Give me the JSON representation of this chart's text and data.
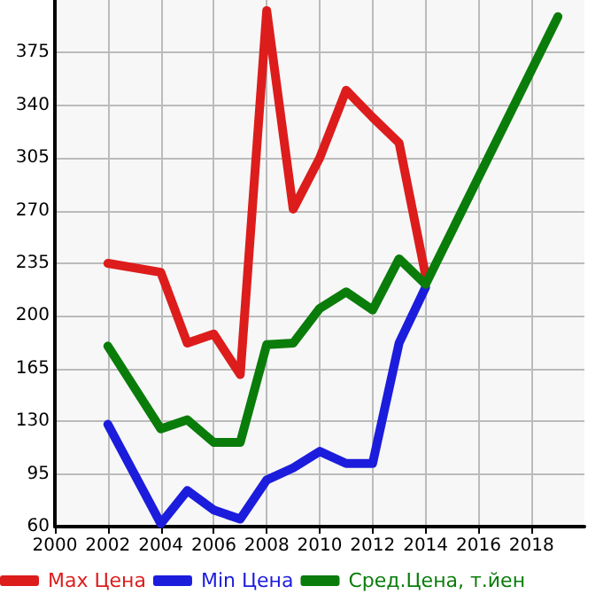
{
  "chart_data": {
    "type": "line",
    "x": [
      2002,
      2004,
      2005,
      2006,
      2007,
      2008,
      2009,
      2010,
      2011,
      2012,
      2013,
      2014
    ],
    "series": [
      {
        "name": "Max Цена",
        "color": "#dd1c1c",
        "values": [
          235,
          229,
          182,
          188,
          161,
          403,
          271,
          305,
          350,
          332,
          315,
          227
        ]
      },
      {
        "name": "Min Цена",
        "color": "#1c1cdd",
        "values": [
          128,
          62,
          84,
          71,
          65,
          91,
          99,
          110,
          102,
          102,
          182,
          219
        ]
      },
      {
        "name": "Сред.Цена, т.йен",
        "color": "#0a7c0a",
        "x": [
          2002,
          2004,
          2005,
          2006,
          2007,
          2008,
          2009,
          2010,
          2011,
          2012,
          2013,
          2014,
          2019
        ],
        "values": [
          180,
          125,
          131,
          116,
          116,
          181,
          182,
          205,
          216,
          204,
          238,
          221,
          399
        ]
      }
    ],
    "xlim": [
      2000,
      2020
    ],
    "xticks": [
      2000,
      2002,
      2004,
      2006,
      2008,
      2010,
      2012,
      2014,
      2016,
      2018
    ],
    "ylim": [
      60,
      410
    ],
    "yticks": [
      60,
      95,
      130,
      165,
      200,
      235,
      270,
      305,
      340,
      375
    ],
    "grid": true,
    "legend": "bottom",
    "marker": "none",
    "line_style": "solid"
  }
}
